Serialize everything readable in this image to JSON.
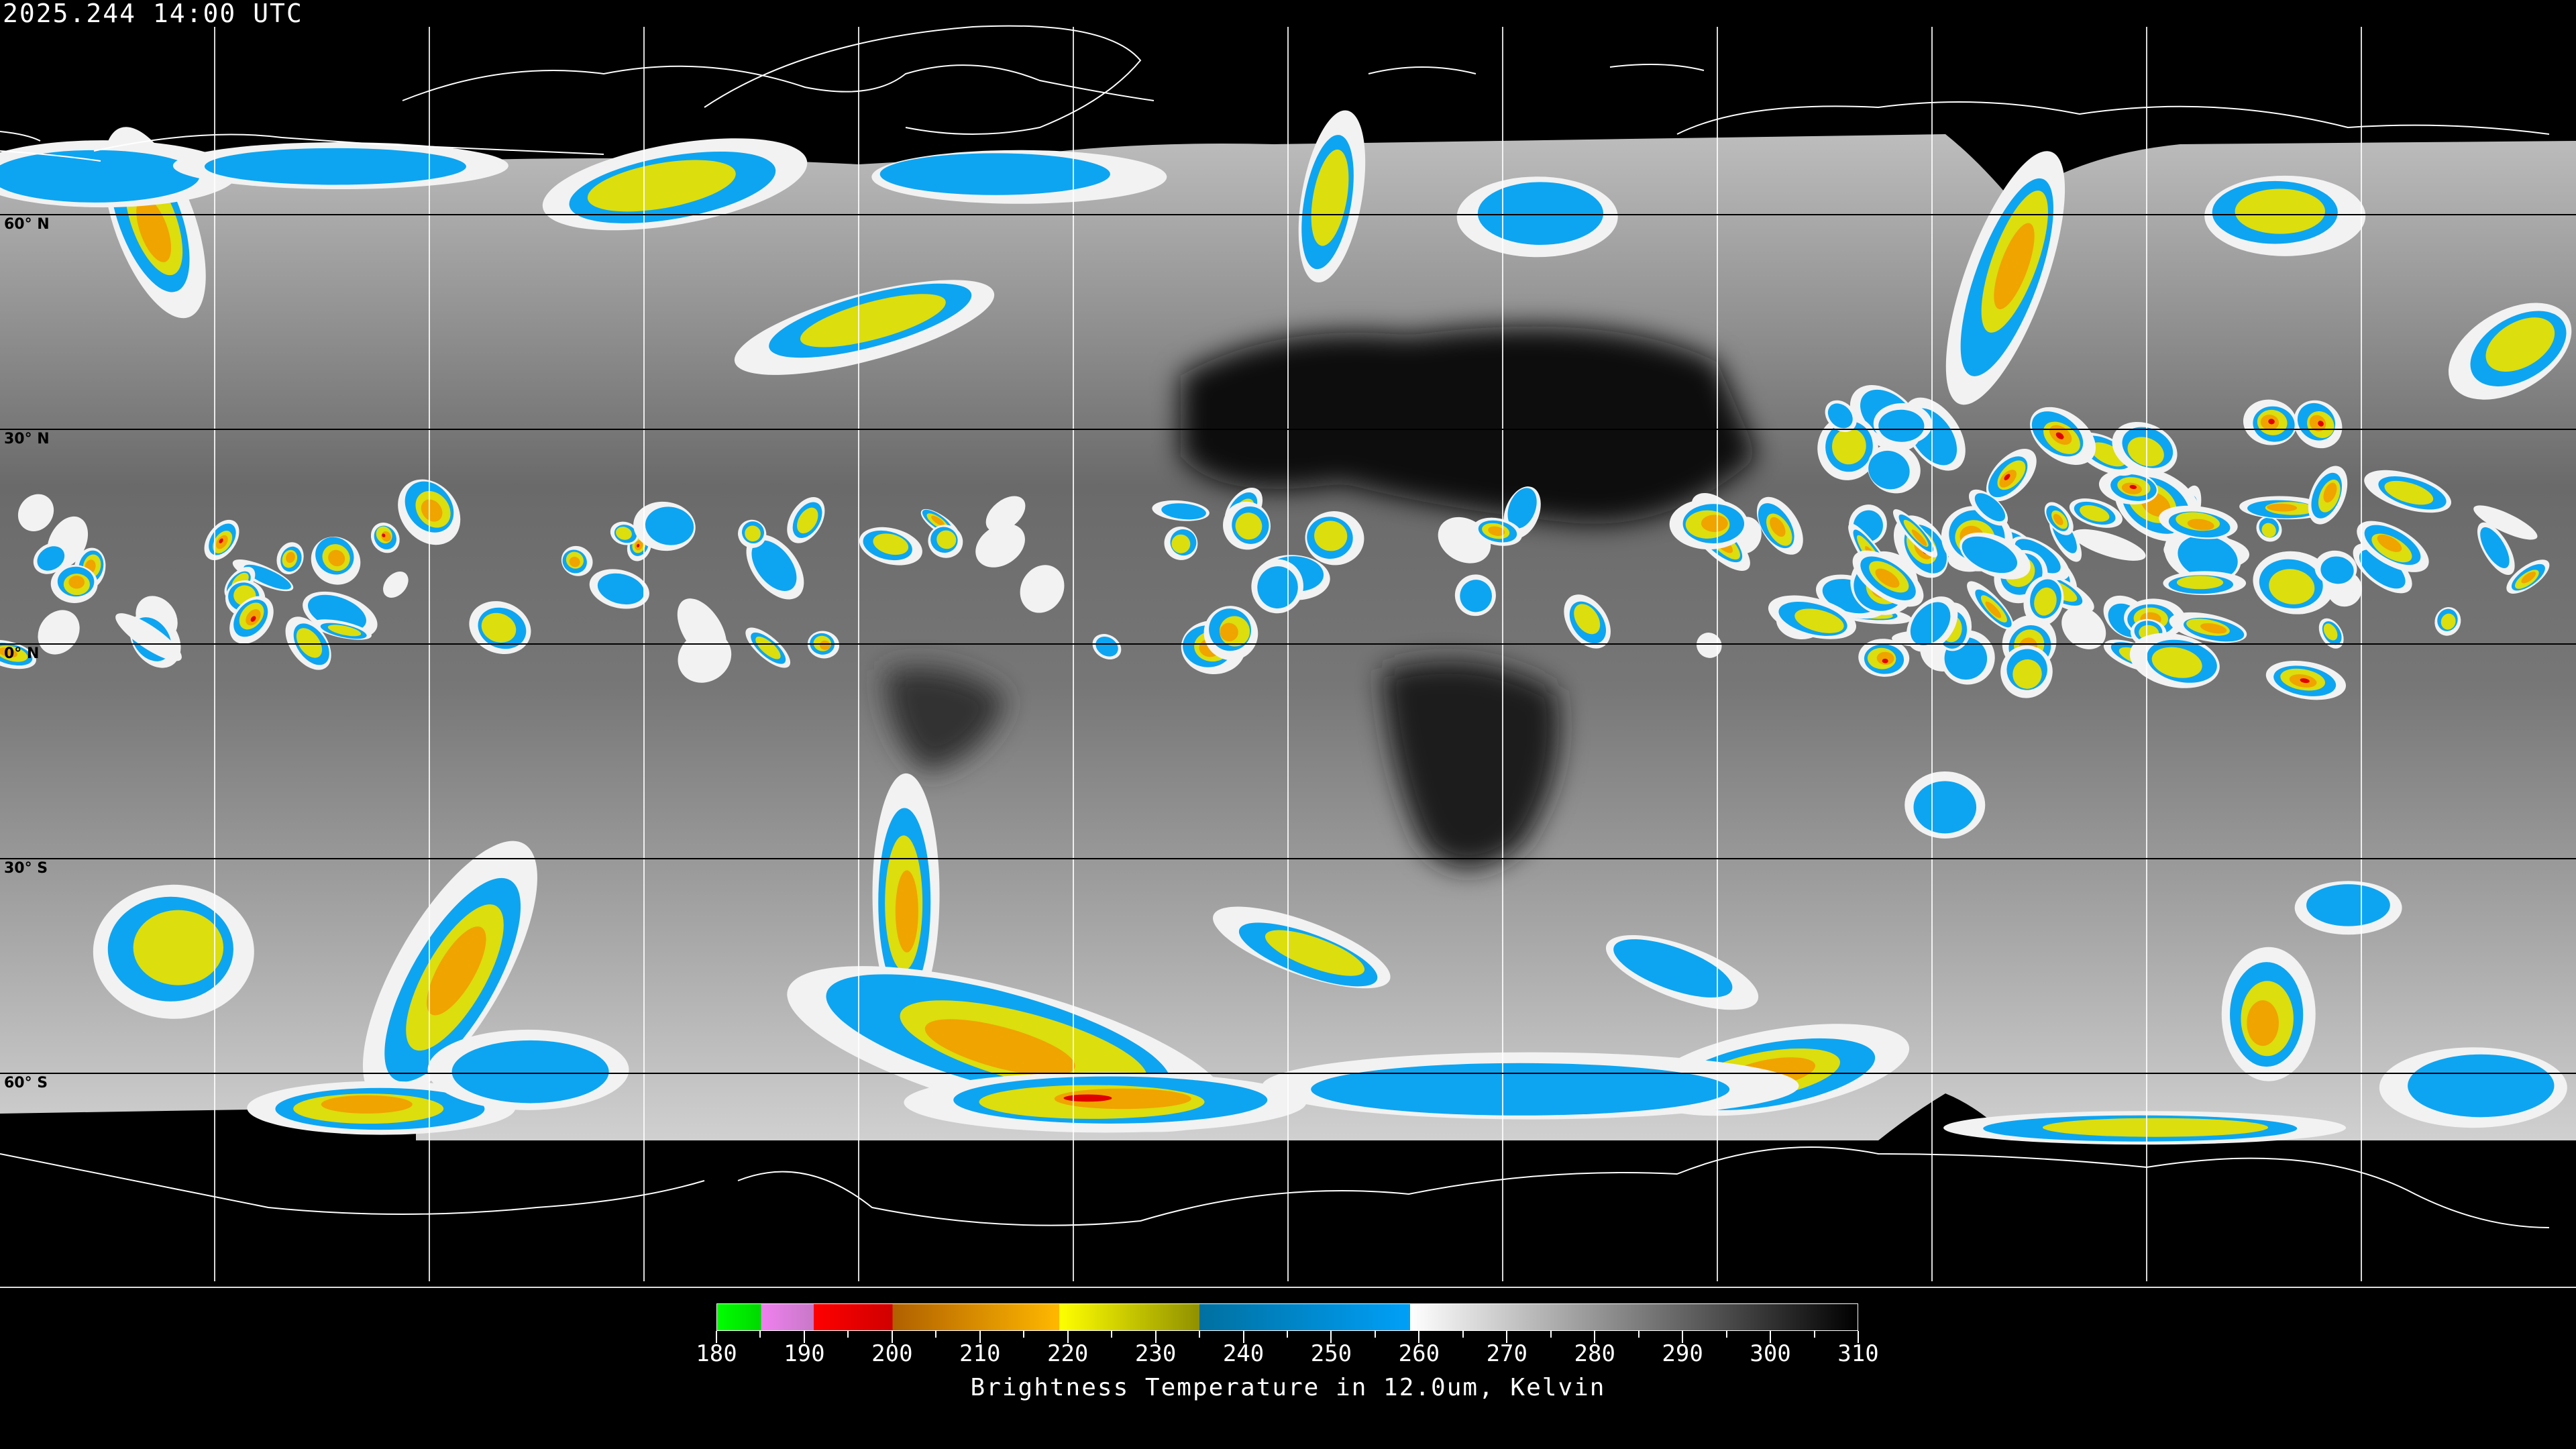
{
  "header": {
    "timestamp": "2025.244 14:00 UTC"
  },
  "map": {
    "projection": "equirectangular",
    "gridline_spacing_degrees": 30,
    "lat_labels": [
      "60° N",
      "30° N",
      "0° N",
      "30° S",
      "60° S"
    ]
  },
  "colorbar": {
    "title": "Brightness Temperature in 12.0um, Kelvin",
    "range": [
      180,
      310
    ],
    "tick_labels": [
      "180",
      "190",
      "200",
      "210",
      "220",
      "230",
      "240",
      "250",
      "260",
      "270",
      "280",
      "290",
      "300",
      "310"
    ],
    "segments": [
      {
        "from": 180,
        "to": 185,
        "colors": [
          "#00ff00",
          "#00d800"
        ]
      },
      {
        "from": 185,
        "to": 191,
        "colors": [
          "#f080f0",
          "#c878c8"
        ]
      },
      {
        "from": 191,
        "to": 200,
        "colors": [
          "#ff0000",
          "#d00000"
        ]
      },
      {
        "from": 200,
        "to": 219,
        "colors": [
          "#b06000",
          "#ffb800"
        ]
      },
      {
        "from": 219,
        "to": 235,
        "colors": [
          "#ffff00",
          "#909000"
        ]
      },
      {
        "from": 235,
        "to": 259,
        "colors": [
          "#0070a0",
          "#00a0f8"
        ]
      },
      {
        "from": 259,
        "to": 310,
        "colors": [
          "#ffffff",
          "#000000"
        ]
      }
    ]
  }
}
